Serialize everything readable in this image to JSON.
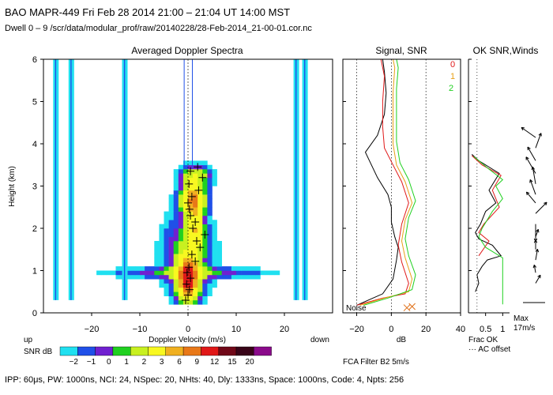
{
  "header": {
    "line1": "BAO  MAPR-449  Fri Feb 28 2014 21:00 – 21:04 UT 14:00 MST",
    "line2": "Dwell   0 –   9    /scr/data/modular_prof/raw/20140228/28-Feb-2014_21-00-01.cor.nc"
  },
  "footer": "IPP:  60μs,  PW: 1000ns,  NCI:  24,  NSpec: 20, NHts: 40,  Dly: 1333ns,  Space: 1000ns,  Code: 4,  Npts: 256",
  "colors": {
    "snr": [
      "#20e0f0",
      "#2050e8",
      "#7020d0",
      "#20d020",
      "#c8f020",
      "#f8f820",
      "#f0b020",
      "#e87818",
      "#e01818",
      "#700818",
      "#380418",
      "#8a0a8a"
    ],
    "series": [
      "#000000",
      "#e01818",
      "#20d020"
    ]
  },
  "chart_data": [
    {
      "type": "heatmap",
      "title": "Averaged Doppler Spectra",
      "xlabel": "Doppler Velocity (m/s)",
      "ylabel": "Height (km)",
      "xlim": [
        -30,
        30
      ],
      "ylim": [
        0,
        6
      ],
      "xticks": [
        -20,
        -10,
        0,
        10,
        20
      ],
      "yticks": [
        0,
        1,
        2,
        3,
        4,
        5,
        6
      ],
      "left_note": "up",
      "right_note": "down",
      "colorbar": {
        "label": "SNR dB",
        "ticks": [
          "−2",
          "−1",
          "0",
          "1",
          "2",
          "3",
          "6",
          "9",
          "12",
          "15",
          "20"
        ]
      },
      "mean_velocity_crosses": [
        [
          -0.5,
          0.3
        ],
        [
          0,
          0.42
        ],
        [
          0.3,
          0.55
        ],
        [
          -0.3,
          0.68
        ],
        [
          0.5,
          0.82
        ],
        [
          -0.2,
          0.95
        ],
        [
          0.2,
          1.08
        ],
        [
          1.5,
          1.22
        ],
        [
          0.8,
          1.38
        ],
        [
          2.5,
          1.55
        ],
        [
          1.8,
          1.7
        ],
        [
          3.5,
          1.85
        ],
        [
          1.0,
          2.0
        ],
        [
          1.5,
          2.15
        ],
        [
          0.5,
          2.3
        ],
        [
          0.3,
          2.45
        ],
        [
          0.0,
          2.6
        ],
        [
          0.8,
          2.75
        ],
        [
          2.2,
          2.9
        ],
        [
          0.2,
          3.05
        ],
        [
          3.0,
          3.2
        ],
        [
          0.5,
          3.35
        ],
        [
          2.0,
          3.45
        ]
      ]
    },
    {
      "type": "line",
      "title": "Signal, SNR",
      "xlabel": "dB",
      "xlim": [
        -28,
        40
      ],
      "ylim": [
        0,
        6
      ],
      "xticks": [
        -20,
        0,
        20,
        40
      ],
      "noise_label": "Noise",
      "legend": [
        "0",
        "1",
        "2"
      ],
      "series": [
        {
          "name": "Signal",
          "points": [
            [
              -20,
              0.18
            ],
            [
              -5,
              0.45
            ],
            [
              1,
              0.8
            ],
            [
              3,
              1.25
            ],
            [
              4,
              1.55
            ],
            [
              2,
              1.8
            ],
            [
              0,
              2.15
            ],
            [
              0,
              2.5
            ],
            [
              -2,
              2.8
            ],
            [
              -8,
              3.2
            ],
            [
              -15,
              3.8
            ],
            [
              -8,
              4.2
            ],
            [
              -4,
              4.7
            ],
            [
              -3,
              5.2
            ],
            [
              -4,
              5.7
            ],
            [
              -5,
              6.0
            ]
          ]
        },
        {
          "name": "0",
          "points": [
            [
              -20,
              0.18
            ],
            [
              -5,
              0.35
            ],
            [
              8,
              0.45
            ],
            [
              10,
              0.7
            ],
            [
              6,
              1.2
            ],
            [
              4,
              1.6
            ],
            [
              6,
              2.1
            ],
            [
              10,
              2.6
            ],
            [
              6,
              3.1
            ],
            [
              1,
              3.5
            ],
            [
              -4,
              3.9
            ],
            [
              -5,
              4.4
            ],
            [
              -5,
              5.0
            ],
            [
              -4,
              5.6
            ],
            [
              -6,
              6.0
            ]
          ]
        },
        {
          "name": "1",
          "points": [
            [
              -18,
              0.18
            ],
            [
              -4,
              0.35
            ],
            [
              10,
              0.5
            ],
            [
              12,
              0.8
            ],
            [
              8,
              1.3
            ],
            [
              6,
              1.7
            ],
            [
              8,
              2.2
            ],
            [
              12,
              2.6
            ],
            [
              8,
              3.1
            ],
            [
              3,
              3.5
            ],
            [
              1,
              4.0
            ],
            [
              1,
              4.6
            ],
            [
              1,
              5.2
            ],
            [
              2,
              5.8
            ],
            [
              1,
              6.0
            ]
          ]
        },
        {
          "name": "2",
          "points": [
            [
              -16,
              0.18
            ],
            [
              -2,
              0.35
            ],
            [
              12,
              0.55
            ],
            [
              14,
              0.9
            ],
            [
              10,
              1.35
            ],
            [
              8,
              1.75
            ],
            [
              10,
              2.25
            ],
            [
              14,
              2.65
            ],
            [
              10,
              3.15
            ],
            [
              5,
              3.55
            ],
            [
              3,
              4.05
            ],
            [
              3,
              4.7
            ],
            [
              3,
              5.3
            ],
            [
              4,
              5.8
            ],
            [
              3,
              6.0
            ]
          ]
        }
      ]
    },
    {
      "type": "line",
      "title": "OK SNR,Winds",
      "xlabel": "Frac OK",
      "xlim": [
        0,
        1.2
      ],
      "ylim": [
        0,
        6
      ],
      "xticks": [
        "0.5",
        "1"
      ],
      "notes": [
        "··· AC offset"
      ],
      "scale_text": [
        "Max",
        "17m/s"
      ],
      "series": [
        {
          "name": "Frac OK 0",
          "points": [
            [
              0.2,
              0.5
            ],
            [
              0.3,
              0.7
            ],
            [
              0.25,
              0.9
            ],
            [
              0.4,
              1.1
            ],
            [
              0.55,
              1.25
            ],
            [
              0.95,
              1.35
            ],
            [
              0.7,
              1.6
            ],
            [
              0.3,
              1.75
            ],
            [
              0.2,
              1.9
            ],
            [
              0.35,
              2.1
            ],
            [
              0.5,
              2.4
            ],
            [
              0.8,
              2.6
            ],
            [
              0.6,
              2.9
            ],
            [
              0.9,
              3.3
            ],
            [
              0.3,
              3.6
            ],
            [
              0.1,
              3.75
            ]
          ]
        },
        {
          "name": "Frac OK 1",
          "points": [
            [
              0.3,
              1.35
            ],
            [
              0.6,
              1.7
            ],
            [
              0.3,
              1.9
            ],
            [
              0.45,
              2.1
            ],
            [
              0.9,
              2.5
            ],
            [
              0.7,
              2.9
            ],
            [
              0.95,
              3.25
            ],
            [
              0.4,
              3.5
            ],
            [
              0.1,
              3.72
            ]
          ]
        },
        {
          "name": "Frac OK 2",
          "points": [
            [
              1.0,
              0.2
            ],
            [
              1.0,
              1.3
            ],
            [
              0.5,
              1.55
            ],
            [
              0.3,
              1.8
            ],
            [
              0.4,
              2.0
            ],
            [
              0.7,
              2.4
            ],
            [
              1.0,
              2.7
            ],
            [
              0.8,
              3.0
            ],
            [
              1.0,
              3.15
            ],
            [
              0.6,
              3.4
            ],
            [
              0.15,
              3.7
            ]
          ]
        }
      ],
      "winds": [
        {
          "h": 0.7,
          "dir": -60,
          "speed": 0.3
        },
        {
          "h": 0.95,
          "dir": -100,
          "speed": 0.25
        },
        {
          "h": 1.25,
          "dir": -80,
          "speed": 0.35
        },
        {
          "h": 1.5,
          "dir": -90,
          "speed": 0.3
        },
        {
          "h": 1.8,
          "dir": -70,
          "speed": 0.25
        },
        {
          "h": 2.1,
          "dir": 90,
          "speed": 0.55
        },
        {
          "h": 2.35,
          "dir": -45,
          "speed": 0.5
        },
        {
          "h": 2.6,
          "dir": -130,
          "speed": 0.45
        },
        {
          "h": 2.8,
          "dir": -110,
          "speed": 0.5
        },
        {
          "h": 3.05,
          "dir": -100,
          "speed": 0.55
        },
        {
          "h": 3.3,
          "dir": -120,
          "speed": 0.6
        },
        {
          "h": 3.6,
          "dir": -120,
          "speed": 0.5
        },
        {
          "h": 3.9,
          "dir": -70,
          "speed": 0.5
        },
        {
          "h": 4.15,
          "dir": -145,
          "speed": 0.55
        }
      ]
    }
  ],
  "filter_note": "FCA Filter B2   5m/s"
}
